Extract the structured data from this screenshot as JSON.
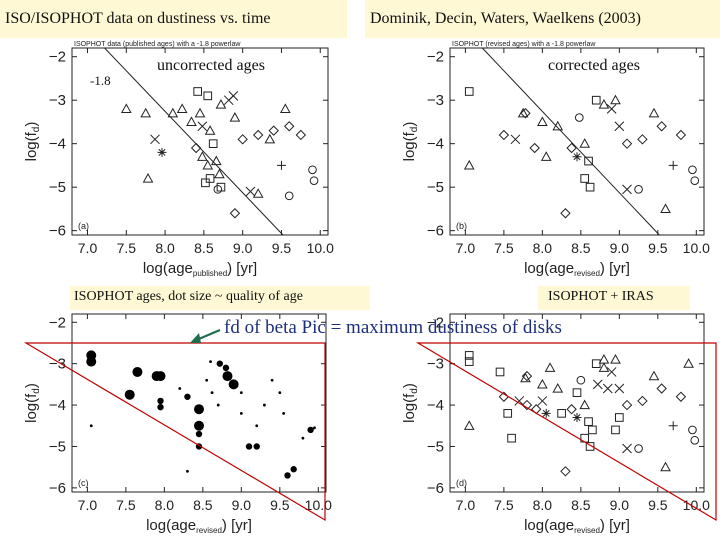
{
  "headers": {
    "left": "ISO/ISOPHOT data on dustiness vs. time",
    "right": "Dominik, Decin, Waters, Waelkens (2003)"
  },
  "annotations": {
    "slope_label": "-1.8",
    "uncorrected": "uncorrected ages",
    "corrected": "corrected ages",
    "dot_size_caption": "ISOPHOT ages, dot size ~ quality of age",
    "iras_caption": "ISOPHOT + IRAS",
    "beta_pic_note": "fd of beta Pic = maximum dustiness of disks"
  },
  "colors": {
    "highlight_bg": "#fef8d5",
    "red_line": "#c00000",
    "annotation_text": "#1d2f7a",
    "arrow": "#1f6e4b",
    "data": "#222222"
  },
  "chart_data": [
    {
      "id": "a",
      "type": "scatter",
      "panel_label": "(a)",
      "title": "ISOPHOT data (published ages) with a -1.8 powerlaw",
      "ylabel": "log(f_d)",
      "xlabel_main": "log(age",
      "xlabel_sub": "published",
      "xlabel_tail": ") [yr]",
      "xlim": [
        6.8,
        10.1
      ],
      "ylim": [
        -6.1,
        -1.8
      ],
      "xticks": [
        7.0,
        7.5,
        8.0,
        8.5,
        9.0,
        9.5,
        10.0
      ],
      "xtick_labels": [
        "7.0",
        "7.5",
        "8.0",
        "8.5",
        "9.0",
        "9.5",
        "10.0"
      ],
      "yticks": [
        -6,
        -5,
        -4,
        -3,
        -2
      ],
      "ytick_labels": [
        "−6",
        "−5",
        "−4",
        "−3",
        "−2"
      ],
      "fit_line": [
        [
          7.22,
          -1.8
        ],
        [
          9.52,
          -6.1
        ]
      ],
      "points": [
        {
          "x": 7.5,
          "y": -3.2,
          "m": "tri"
        },
        {
          "x": 7.75,
          "y": -3.3,
          "m": "tri"
        },
        {
          "x": 7.78,
          "y": -4.8,
          "m": "tri"
        },
        {
          "x": 7.87,
          "y": -3.9,
          "m": "x"
        },
        {
          "x": 7.96,
          "y": -4.2,
          "m": "star"
        },
        {
          "x": 8.1,
          "y": -3.3,
          "m": "tri"
        },
        {
          "x": 8.22,
          "y": -3.2,
          "m": "tri"
        },
        {
          "x": 8.34,
          "y": -3.5,
          "m": "tri"
        },
        {
          "x": 8.45,
          "y": -3.3,
          "m": "tri"
        },
        {
          "x": 8.42,
          "y": -2.8,
          "m": "sq"
        },
        {
          "x": 8.55,
          "y": -2.9,
          "m": "sq"
        },
        {
          "x": 8.48,
          "y": -3.6,
          "m": "x"
        },
        {
          "x": 8.58,
          "y": -3.7,
          "m": "tri"
        },
        {
          "x": 8.72,
          "y": -3.1,
          "m": "tri"
        },
        {
          "x": 8.82,
          "y": -3.0,
          "m": "x"
        },
        {
          "x": 8.88,
          "y": -2.9,
          "m": "x"
        },
        {
          "x": 8.9,
          "y": -3.4,
          "m": "tri"
        },
        {
          "x": 8.4,
          "y": -4.1,
          "m": "dia"
        },
        {
          "x": 8.48,
          "y": -4.3,
          "m": "tri"
        },
        {
          "x": 8.55,
          "y": -4.5,
          "m": "tri"
        },
        {
          "x": 8.62,
          "y": -4.0,
          "m": "sq"
        },
        {
          "x": 8.66,
          "y": -4.4,
          "m": "tri"
        },
        {
          "x": 8.58,
          "y": -4.8,
          "m": "sq"
        },
        {
          "x": 8.52,
          "y": -4.9,
          "m": "sq"
        },
        {
          "x": 8.7,
          "y": -4.7,
          "m": "tri"
        },
        {
          "x": 8.72,
          "y": -5.0,
          "m": "sq"
        },
        {
          "x": 8.68,
          "y": -5.05,
          "m": "circ"
        },
        {
          "x": 9.0,
          "y": -3.9,
          "m": "dia"
        },
        {
          "x": 9.2,
          "y": -3.8,
          "m": "dia"
        },
        {
          "x": 9.35,
          "y": -3.9,
          "m": "tri"
        },
        {
          "x": 9.4,
          "y": -3.7,
          "m": "dia"
        },
        {
          "x": 9.55,
          "y": -3.2,
          "m": "tri"
        },
        {
          "x": 9.6,
          "y": -3.6,
          "m": "dia"
        },
        {
          "x": 9.75,
          "y": -3.8,
          "m": "dia"
        },
        {
          "x": 9.1,
          "y": -5.1,
          "m": "x"
        },
        {
          "x": 9.2,
          "y": -5.15,
          "m": "tri"
        },
        {
          "x": 9.5,
          "y": -4.5,
          "m": "plus"
        },
        {
          "x": 9.9,
          "y": -4.6,
          "m": "circ"
        },
        {
          "x": 9.92,
          "y": -4.85,
          "m": "circ"
        },
        {
          "x": 8.9,
          "y": -5.6,
          "m": "dia"
        },
        {
          "x": 9.6,
          "y": -5.2,
          "m": "circ"
        }
      ]
    },
    {
      "id": "b",
      "type": "scatter",
      "panel_label": "(b)",
      "title": "ISOPHOT (revised ages) with a -1.8 powerlaw",
      "ylabel": "log(f_d)",
      "xlabel_main": "log(age",
      "xlabel_sub": "revised",
      "xlabel_tail": ") [yr]",
      "xlim": [
        6.8,
        10.1
      ],
      "ylim": [
        -6.1,
        -1.8
      ],
      "xticks": [
        7.0,
        7.5,
        8.0,
        8.5,
        9.0,
        9.5,
        10.0
      ],
      "xtick_labels": [
        "7.0",
        "7.5",
        "8.0",
        "8.5",
        "9.0",
        "9.5",
        "10.0"
      ],
      "yticks": [
        -6,
        -5,
        -4,
        -3,
        -2
      ],
      "ytick_labels": [
        "−6",
        "−5",
        "−4",
        "−3",
        "−2"
      ],
      "fit_line": [
        [
          7.22,
          -1.8
        ],
        [
          9.52,
          -6.1
        ]
      ],
      "points": [
        {
          "x": 7.05,
          "y": -2.8,
          "m": "sq"
        },
        {
          "x": 7.05,
          "y": -4.5,
          "m": "tri"
        },
        {
          "x": 7.5,
          "y": -3.8,
          "m": "dia"
        },
        {
          "x": 7.65,
          "y": -3.9,
          "m": "x"
        },
        {
          "x": 7.75,
          "y": -3.3,
          "m": "tri"
        },
        {
          "x": 7.78,
          "y": -3.3,
          "m": "dia"
        },
        {
          "x": 7.9,
          "y": -4.1,
          "m": "dia"
        },
        {
          "x": 8.0,
          "y": -3.5,
          "m": "tri"
        },
        {
          "x": 8.05,
          "y": -4.3,
          "m": "tri"
        },
        {
          "x": 8.2,
          "y": -3.6,
          "m": "tri"
        },
        {
          "x": 8.38,
          "y": -4.1,
          "m": "dia"
        },
        {
          "x": 8.45,
          "y": -4.3,
          "m": "star"
        },
        {
          "x": 8.48,
          "y": -3.4,
          "m": "circ"
        },
        {
          "x": 8.55,
          "y": -4.0,
          "m": "tri"
        },
        {
          "x": 8.6,
          "y": -4.4,
          "m": "sq"
        },
        {
          "x": 8.55,
          "y": -4.8,
          "m": "sq"
        },
        {
          "x": 8.62,
          "y": -5.0,
          "m": "sq"
        },
        {
          "x": 8.7,
          "y": -3.0,
          "m": "sq"
        },
        {
          "x": 8.8,
          "y": -3.1,
          "m": "tri"
        },
        {
          "x": 8.9,
          "y": -3.2,
          "m": "x"
        },
        {
          "x": 8.95,
          "y": -3.0,
          "m": "tri"
        },
        {
          "x": 9.0,
          "y": -3.6,
          "m": "x"
        },
        {
          "x": 9.1,
          "y": -4.0,
          "m": "dia"
        },
        {
          "x": 9.3,
          "y": -3.9,
          "m": "dia"
        },
        {
          "x": 9.45,
          "y": -3.3,
          "m": "tri"
        },
        {
          "x": 9.55,
          "y": -3.6,
          "m": "dia"
        },
        {
          "x": 9.8,
          "y": -3.8,
          "m": "dia"
        },
        {
          "x": 9.1,
          "y": -5.05,
          "m": "x"
        },
        {
          "x": 9.25,
          "y": -5.05,
          "m": "circ"
        },
        {
          "x": 9.7,
          "y": -4.5,
          "m": "plus"
        },
        {
          "x": 9.6,
          "y": -5.5,
          "m": "tri"
        },
        {
          "x": 9.95,
          "y": -4.6,
          "m": "circ"
        },
        {
          "x": 9.98,
          "y": -4.85,
          "m": "circ"
        },
        {
          "x": 8.3,
          "y": -5.6,
          "m": "dia"
        }
      ]
    },
    {
      "id": "c",
      "type": "scatter",
      "panel_label": "(c)",
      "ylabel": "log(f_d)",
      "xlabel_main": "log(age",
      "xlabel_sub": "revised",
      "xlabel_tail": ") [yr]",
      "xlim": [
        6.8,
        10.1
      ],
      "ylim": [
        -6.1,
        -1.8
      ],
      "xticks": [
        7.0,
        7.5,
        8.0,
        8.5,
        9.0,
        9.5,
        10.0
      ],
      "xtick_labels": [
        "7.0",
        "7.5",
        "8.0",
        "8.5",
        "9.0",
        "9.5",
        "10.0"
      ],
      "yticks": [
        -6,
        -5,
        -4,
        -3,
        -2
      ],
      "ytick_labels": [
        "−6",
        "−5",
        "−4",
        "−3",
        "−2"
      ],
      "dots": [
        {
          "x": 7.05,
          "y": -2.8,
          "q": 3
        },
        {
          "x": 7.05,
          "y": -2.95,
          "q": 3
        },
        {
          "x": 7.05,
          "y": -4.5,
          "q": 1
        },
        {
          "x": 7.55,
          "y": -3.75,
          "q": 3
        },
        {
          "x": 7.65,
          "y": -3.2,
          "q": 3
        },
        {
          "x": 7.9,
          "y": -3.3,
          "q": 3
        },
        {
          "x": 7.95,
          "y": -3.3,
          "q": 3
        },
        {
          "x": 7.95,
          "y": -3.9,
          "q": 2
        },
        {
          "x": 7.95,
          "y": -4.05,
          "q": 2
        },
        {
          "x": 8.2,
          "y": -3.6,
          "q": 1
        },
        {
          "x": 8.3,
          "y": -3.8,
          "q": 2
        },
        {
          "x": 8.45,
          "y": -4.1,
          "q": 3
        },
        {
          "x": 8.45,
          "y": -4.5,
          "q": 3
        },
        {
          "x": 8.45,
          "y": -4.7,
          "q": 2
        },
        {
          "x": 8.45,
          "y": -5.0,
          "q": 2
        },
        {
          "x": 8.55,
          "y": -3.4,
          "q": 1
        },
        {
          "x": 8.62,
          "y": -3.7,
          "q": 1
        },
        {
          "x": 8.7,
          "y": -4.0,
          "q": 1
        },
        {
          "x": 8.72,
          "y": -3.0,
          "q": 2
        },
        {
          "x": 8.8,
          "y": -3.1,
          "q": 2
        },
        {
          "x": 8.82,
          "y": -3.3,
          "q": 3
        },
        {
          "x": 8.9,
          "y": -3.5,
          "q": 3
        },
        {
          "x": 9.0,
          "y": -3.7,
          "q": 1
        },
        {
          "x": 9.1,
          "y": -5.0,
          "q": 2
        },
        {
          "x": 9.2,
          "y": -5.0,
          "q": 2
        },
        {
          "x": 9.3,
          "y": -4.0,
          "q": 1
        },
        {
          "x": 9.4,
          "y": -3.4,
          "q": 1
        },
        {
          "x": 9.5,
          "y": -3.7,
          "q": 1
        },
        {
          "x": 9.55,
          "y": -4.2,
          "q": 1
        },
        {
          "x": 9.6,
          "y": -5.7,
          "q": 2
        },
        {
          "x": 9.68,
          "y": -5.55,
          "q": 2
        },
        {
          "x": 9.8,
          "y": -4.8,
          "q": 1
        },
        {
          "x": 9.9,
          "y": -4.6,
          "q": 2
        },
        {
          "x": 9.95,
          "y": -4.55,
          "q": 1
        },
        {
          "x": 8.3,
          "y": -5.6,
          "q": 1
        },
        {
          "x": 9.0,
          "y": -4.2,
          "q": 1
        },
        {
          "x": 9.2,
          "y": -4.5,
          "q": 1
        },
        {
          "x": 8.6,
          "y": -2.95,
          "q": 1
        }
      ]
    },
    {
      "id": "d",
      "type": "scatter",
      "panel_label": "(d)",
      "ylabel": "log(f_d)",
      "xlabel_main": "log(age",
      "xlabel_sub": "revised",
      "xlabel_tail": ") [yr]",
      "xlim": [
        6.8,
        10.1
      ],
      "ylim": [
        -6.1,
        -1.8
      ],
      "xticks": [
        7.0,
        7.5,
        8.0,
        8.5,
        9.0,
        9.5,
        10.0
      ],
      "xtick_labels": [
        "7.0",
        "7.5",
        "8.0",
        "8.5",
        "9.0",
        "9.5",
        "10.0"
      ],
      "yticks": [
        -6,
        -5,
        -4,
        -3,
        -2
      ],
      "ytick_labels": [
        "−6",
        "−5",
        "−4",
        "−3",
        "−2"
      ],
      "points": [
        {
          "x": 7.05,
          "y": -2.8,
          "m": "sq"
        },
        {
          "x": 7.05,
          "y": -2.95,
          "m": "sq"
        },
        {
          "x": 7.05,
          "y": -4.5,
          "m": "tri"
        },
        {
          "x": 7.45,
          "y": -3.2,
          "m": "sq"
        },
        {
          "x": 7.5,
          "y": -3.8,
          "m": "dia"
        },
        {
          "x": 7.55,
          "y": -4.2,
          "m": "sq"
        },
        {
          "x": 7.6,
          "y": -4.8,
          "m": "sq"
        },
        {
          "x": 7.7,
          "y": -3.9,
          "m": "x"
        },
        {
          "x": 7.78,
          "y": -3.35,
          "m": "tri"
        },
        {
          "x": 7.8,
          "y": -3.3,
          "m": "dia"
        },
        {
          "x": 7.92,
          "y": -4.1,
          "m": "dia"
        },
        {
          "x": 8.0,
          "y": -3.5,
          "m": "tri"
        },
        {
          "x": 8.05,
          "y": -4.2,
          "m": "star"
        },
        {
          "x": 8.1,
          "y": -3.1,
          "m": "tri"
        },
        {
          "x": 8.2,
          "y": -3.6,
          "m": "tri"
        },
        {
          "x": 8.25,
          "y": -4.2,
          "m": "sq"
        },
        {
          "x": 8.38,
          "y": -4.1,
          "m": "dia"
        },
        {
          "x": 8.45,
          "y": -4.3,
          "m": "star"
        },
        {
          "x": 8.5,
          "y": -3.4,
          "m": "circ"
        },
        {
          "x": 8.55,
          "y": -4.0,
          "m": "tri"
        },
        {
          "x": 8.6,
          "y": -4.4,
          "m": "sq"
        },
        {
          "x": 8.55,
          "y": -4.8,
          "m": "sq"
        },
        {
          "x": 8.62,
          "y": -5.0,
          "m": "sq"
        },
        {
          "x": 8.7,
          "y": -3.0,
          "m": "sq"
        },
        {
          "x": 8.72,
          "y": -3.5,
          "m": "x"
        },
        {
          "x": 8.8,
          "y": -3.1,
          "m": "tri"
        },
        {
          "x": 8.85,
          "y": -3.6,
          "m": "x"
        },
        {
          "x": 8.9,
          "y": -3.2,
          "m": "x"
        },
        {
          "x": 8.95,
          "y": -2.9,
          "m": "tri"
        },
        {
          "x": 9.0,
          "y": -3.6,
          "m": "x"
        },
        {
          "x": 9.1,
          "y": -4.0,
          "m": "dia"
        },
        {
          "x": 9.3,
          "y": -3.9,
          "m": "dia"
        },
        {
          "x": 9.45,
          "y": -3.3,
          "m": "tri"
        },
        {
          "x": 9.55,
          "y": -3.6,
          "m": "dia"
        },
        {
          "x": 9.8,
          "y": -3.8,
          "m": "dia"
        },
        {
          "x": 9.1,
          "y": -5.05,
          "m": "x"
        },
        {
          "x": 9.25,
          "y": -5.05,
          "m": "circ"
        },
        {
          "x": 9.7,
          "y": -4.5,
          "m": "plus"
        },
        {
          "x": 9.6,
          "y": -5.5,
          "m": "tri"
        },
        {
          "x": 9.95,
          "y": -4.6,
          "m": "circ"
        },
        {
          "x": 9.98,
          "y": -4.85,
          "m": "circ"
        },
        {
          "x": 8.3,
          "y": -5.6,
          "m": "dia"
        },
        {
          "x": 9.0,
          "y": -4.3,
          "m": "sq"
        },
        {
          "x": 8.95,
          "y": -4.6,
          "m": "sq"
        },
        {
          "x": 8.45,
          "y": -3.7,
          "m": "sq"
        },
        {
          "x": 7.8,
          "y": -4.0,
          "m": "dia"
        },
        {
          "x": 8.0,
          "y": -3.9,
          "m": "x"
        },
        {
          "x": 9.9,
          "y": -3.0,
          "m": "tri"
        },
        {
          "x": 8.8,
          "y": -2.9,
          "m": "tri"
        },
        {
          "x": 8.65,
          "y": -4.6,
          "m": "sq"
        }
      ]
    }
  ]
}
